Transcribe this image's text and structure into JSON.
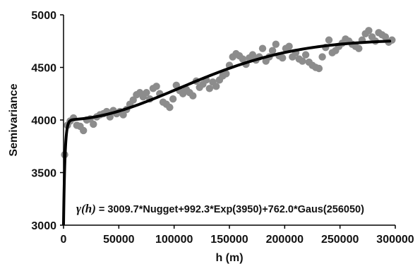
{
  "chart_data": {
    "type": "scatter",
    "xlabel": "h (m)",
    "ylabel": "Semivariance",
    "xlim": [
      0,
      300000
    ],
    "ylim": [
      3000,
      5000
    ],
    "x_ticks": [
      0,
      50000,
      100000,
      150000,
      200000,
      250000,
      300000
    ],
    "x_tick_labels": [
      "0",
      "50000",
      "100000",
      "150000",
      "200000",
      "250000",
      "300000"
    ],
    "y_ticks": [
      3000,
      3500,
      4000,
      4500,
      5000
    ],
    "y_tick_labels": [
      "3000",
      "3500",
      "4000",
      "4500",
      "5000"
    ],
    "grid": false,
    "legend": "none",
    "annotation": {
      "gamma_label": "γ(h)",
      "text": " = 3009.7*Nugget+992.3*Exp(3950)+762.0*Gaus(256050)"
    },
    "model": {
      "nugget": 3009.7,
      "exp_sill": 992.3,
      "exp_range": 3950,
      "gaus_sill": 762.0,
      "gaus_range": 256050
    },
    "colors": {
      "points": "#8c8c8c",
      "fit_line": "#000000",
      "axes": "#000000"
    },
    "series": [
      {
        "type": "scatter",
        "x": [
          1000,
          3500,
          6000,
          9000,
          12000,
          15000,
          18000,
          21000,
          24000,
          27000,
          30000,
          33000,
          36000,
          39000,
          42000,
          45000,
          48000,
          51000,
          54000,
          57000,
          60000,
          63000,
          66000,
          69000,
          72000,
          75000,
          78000,
          81000,
          84000,
          87000,
          90000,
          93000,
          96000,
          99000,
          102000,
          105000,
          108000,
          111000,
          114000,
          117000,
          120000,
          123000,
          126000,
          129000,
          132000,
          135000,
          138000,
          141000,
          144000,
          147000,
          150000,
          153000,
          156000,
          159000,
          162000,
          165000,
          168000,
          171000,
          174000,
          177000,
          180000,
          183000,
          186000,
          189000,
          192000,
          195000,
          198000,
          201000,
          204000,
          207000,
          210000,
          213000,
          216000,
          219000,
          222000,
          225000,
          228000,
          231000,
          234000,
          237000,
          240000,
          243000,
          246000,
          249000,
          252000,
          255000,
          258000,
          261000,
          264000,
          267000,
          270000,
          273000,
          276000,
          279000,
          282000,
          285000,
          288000,
          291000,
          294000,
          297000
        ],
        "y": [
          3670,
          3950,
          3990,
          4020,
          3950,
          3940,
          3900,
          4000,
          4010,
          3960,
          4030,
          4050,
          4060,
          4080,
          4030,
          4090,
          4060,
          4080,
          4050,
          4100,
          4150,
          4190,
          4240,
          4260,
          4220,
          4260,
          4200,
          4300,
          4320,
          4250,
          4170,
          4150,
          4120,
          4200,
          4330,
          4280,
          4250,
          4290,
          4260,
          4230,
          4370,
          4310,
          4340,
          4380,
          4300,
          4360,
          4320,
          4380,
          4420,
          4440,
          4520,
          4600,
          4630,
          4610,
          4580,
          4530,
          4590,
          4620,
          4570,
          4600,
          4680,
          4560,
          4600,
          4660,
          4720,
          4610,
          4590,
          4680,
          4700,
          4600,
          4640,
          4580,
          4560,
          4620,
          4550,
          4520,
          4500,
          4490,
          4600,
          4690,
          4760,
          4640,
          4660,
          4700,
          4730,
          4770,
          4750,
          4720,
          4700,
          4680,
          4760,
          4820,
          4850,
          4790,
          4750,
          4830,
          4810,
          4790,
          4740,
          4760
        ]
      }
    ]
  }
}
